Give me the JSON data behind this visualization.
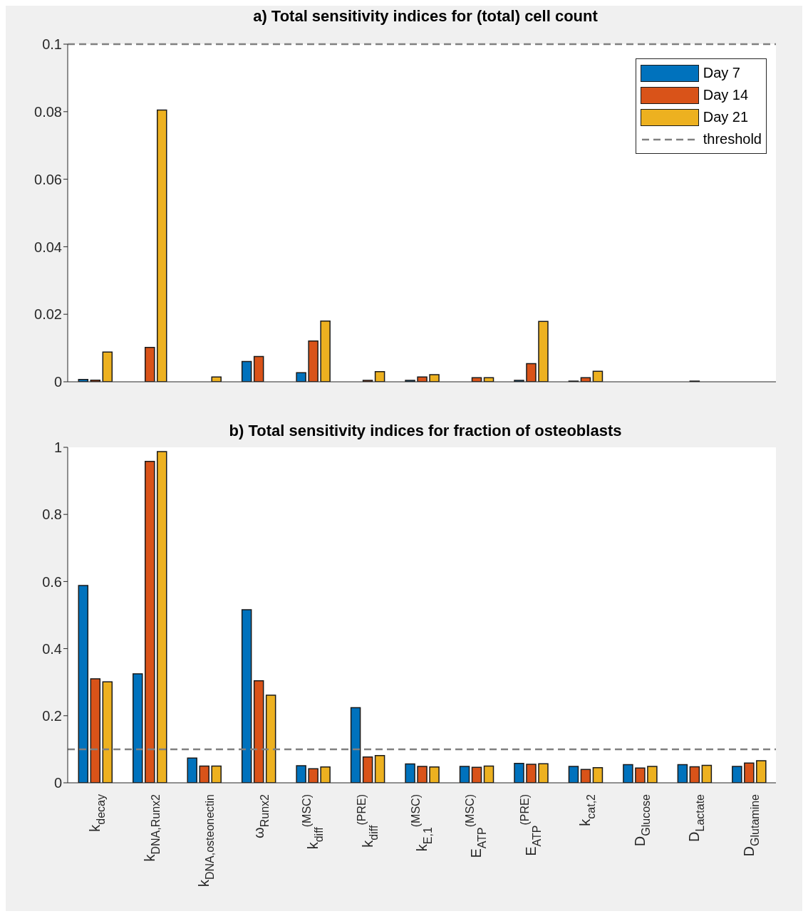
{
  "chart_data": [
    {
      "type": "bar",
      "title": "a) Total sensitivity indices for (total) cell count",
      "categories": [
        null,
        null,
        null,
        null,
        null,
        null,
        null,
        null,
        null,
        null,
        null,
        null,
        null
      ],
      "series": [
        {
          "name": "Day 7",
          "color": "#0072bd",
          "values": [
            0.0007,
            0,
            null,
            0.006,
            0.0027,
            0,
            0.0004,
            0,
            0.0004,
            0.0002,
            0,
            0,
            0
          ]
        },
        {
          "name": "Day 14",
          "color": "#d95319",
          "values": [
            0.0005,
            0.0102,
            null,
            0.0075,
            0.0121,
            0.0004,
            0.0014,
            0.0012,
            0.0054,
            0.0012,
            0,
            0.0002,
            0
          ]
        },
        {
          "name": "Day 21",
          "color": "#edb120",
          "values": [
            0.0088,
            0.0805,
            0.0014,
            0,
            0.018,
            0.003,
            0.0021,
            0.0012,
            0.0179,
            0.0031,
            0,
            0,
            null
          ]
        }
      ],
      "ylim": [
        0,
        0.1
      ],
      "yticks": [
        0,
        0.02,
        0.04,
        0.06,
        0.08,
        0.1
      ],
      "ref_lines": [
        {
          "axis": "y",
          "value": 0.1,
          "label": "threshold",
          "color": "#808080",
          "line_style": "dashed"
        }
      ],
      "legend": "top right",
      "tick_labels": "y"
    },
    {
      "type": "bar",
      "title": "b) Total sensitivity indices for fraction of osteoblasts",
      "categories": [
        "k$_{decay}$",
        "k$_{DNA,Runx2}$",
        "k$_{DNA,osteonectin}$",
        "ω$_{Runx2}$",
        "k$_{diff}$$^{(MSC)}$",
        "k$_{diff}$$^{(PRE)}$",
        "k$_{E,1}$$^{(MSC)}$",
        "E$_{ATP}$$^{(MSC)}$",
        "E$_{ATP}$$^{(PRE)}$",
        "k$_{cat,2}$",
        "D$_{Glucose}$",
        "D$_{Lactate}$",
        "D$_{Glutamine}$"
      ],
      "series": [
        {
          "color": "#0072bd",
          "values": [
            0.588,
            0.325,
            0.074,
            0.516,
            0.051,
            0.224,
            0.056,
            0.049,
            0.058,
            0.049,
            0.054,
            0.054,
            0.049
          ]
        },
        {
          "color": "#d95319",
          "values": [
            0.31,
            0.958,
            0.05,
            0.304,
            0.042,
            0.077,
            0.049,
            0.046,
            0.055,
            0.04,
            0.044,
            0.048,
            0.059
          ]
        },
        {
          "color": "#edb120",
          "values": [
            0.301,
            0.987,
            0.05,
            0.261,
            0.047,
            0.081,
            0.047,
            0.05,
            0.057,
            0.045,
            0.049,
            0.052,
            0.066
          ]
        }
      ],
      "ylim": [
        0,
        1
      ],
      "yticks": [
        0,
        0.2,
        0.4,
        0.6,
        0.8,
        1
      ],
      "ref_lines": [
        {
          "axis": "y",
          "value": 0.1,
          "color": "#808080",
          "line_style": "dashed"
        }
      ],
      "legend": false
    }
  ]
}
